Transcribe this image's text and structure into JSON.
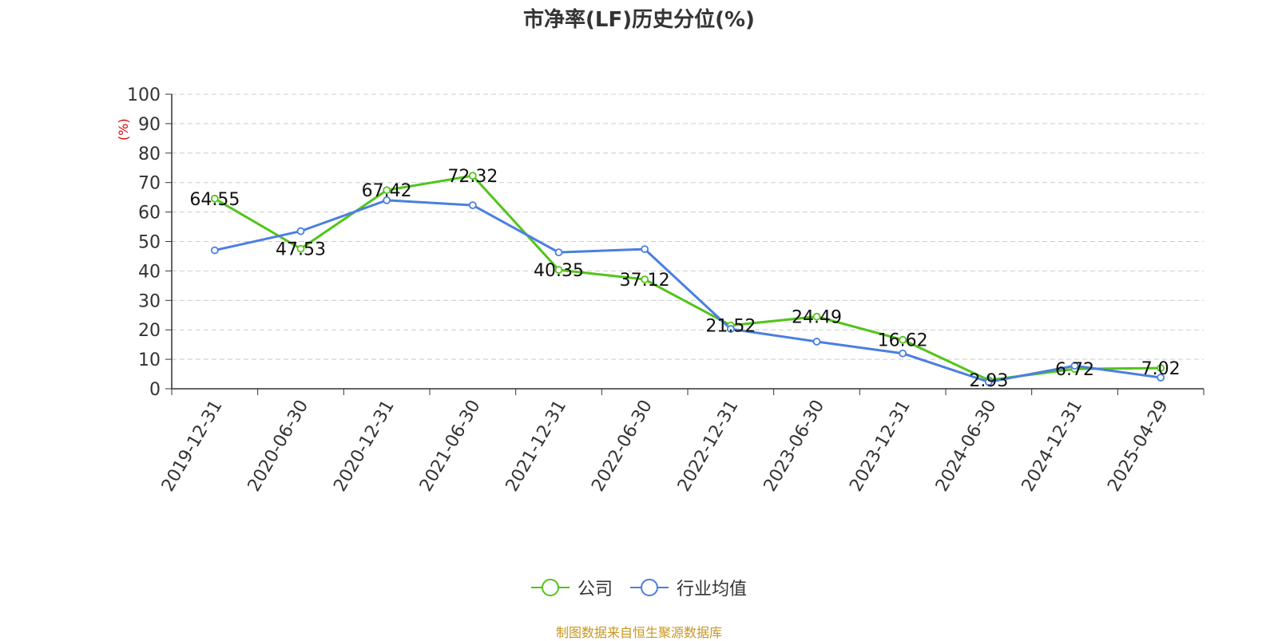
{
  "chart_data": {
    "type": "line",
    "title": "市净率(LF)历史分位(%)",
    "ylabel": "(%)",
    "ylim": [
      0,
      100
    ],
    "yticks": [
      0,
      10,
      20,
      30,
      40,
      50,
      60,
      70,
      80,
      90,
      100
    ],
    "categories": [
      "2019-12-31",
      "2020-06-30",
      "2020-12-31",
      "2021-06-30",
      "2021-12-31",
      "2022-06-30",
      "2022-12-31",
      "2023-06-30",
      "2023-12-31",
      "2024-06-30",
      "2024-12-31",
      "2025-04-29"
    ],
    "series": [
      {
        "name": "公司",
        "color": "#52c41a",
        "labeled": true,
        "values": [
          64.55,
          47.53,
          67.42,
          72.32,
          40.35,
          37.12,
          21.52,
          24.49,
          16.62,
          2.93,
          6.72,
          7.02
        ]
      },
      {
        "name": "行业均值",
        "color": "#4a7fe0",
        "labeled": false,
        "values": [
          47.0,
          53.5,
          64.0,
          62.3,
          46.3,
          47.4,
          20.3,
          16.0,
          12.0,
          2.3,
          7.8,
          3.8
        ]
      }
    ],
    "grid": true,
    "legend_position": "bottom"
  },
  "footer": {
    "source": "制图数据来自恒生聚源数据库"
  },
  "colors": {
    "ylabel": "#e00000",
    "axis": "#333333",
    "grid": "#cccccc"
  }
}
